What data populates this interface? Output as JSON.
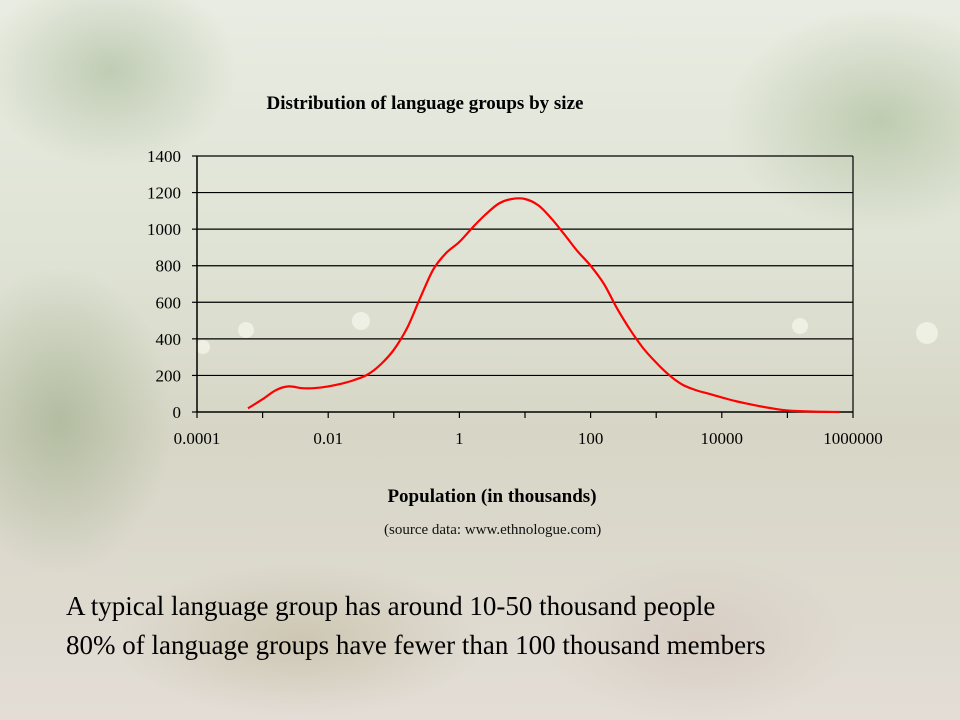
{
  "chart_data": {
    "type": "line",
    "title": "Distribution of language groups by size",
    "xlabel": "Population (in thousands)",
    "ylabel": "",
    "x_scale": "log",
    "xlim": [
      0.0001,
      1000000
    ],
    "ylim": [
      0,
      1400
    ],
    "x_ticks": [
      "0.0001",
      "0.01",
      "1",
      "100",
      "10000",
      "1000000"
    ],
    "y_ticks": [
      "0",
      "200",
      "400",
      "600",
      "800",
      "1000",
      "1200",
      "1400"
    ],
    "grid": "horizontal",
    "series": [
      {
        "color": "#ff0000",
        "x": [
          0.0006,
          0.001,
          0.0016,
          0.0025,
          0.004,
          0.006,
          0.01,
          0.016,
          0.025,
          0.04,
          0.063,
          0.1,
          0.16,
          0.25,
          0.4,
          0.63,
          1,
          1.6,
          2.5,
          4,
          6.3,
          10,
          16,
          25,
          40,
          63,
          100,
          160,
          250,
          400,
          630,
          1000,
          1600,
          2500,
          4000,
          6300,
          10000,
          16000,
          25000,
          40000,
          63000,
          100000,
          250000,
          630000
        ],
        "y": [
          20,
          70,
          120,
          140,
          130,
          130,
          140,
          155,
          175,
          205,
          260,
          340,
          460,
          620,
          780,
          870,
          930,
          1010,
          1080,
          1140,
          1165,
          1165,
          1130,
          1060,
          970,
          880,
          800,
          700,
          570,
          450,
          350,
          270,
          200,
          150,
          120,
          100,
          80,
          60,
          45,
          30,
          18,
          8,
          2,
          0
        ]
      }
    ]
  },
  "source_note": "(source data: www.ethnologue.com)",
  "caption_line_1": "A typical language group has around 10-50 thousand people",
  "caption_line_2": "80% of language groups have fewer than 100 thousand members"
}
